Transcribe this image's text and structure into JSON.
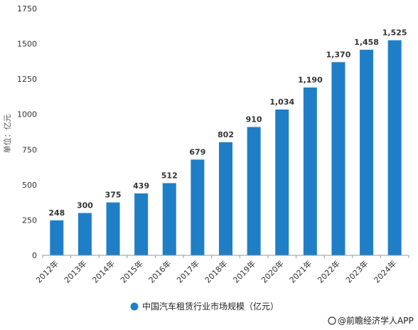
{
  "chart_data": {
    "type": "bar",
    "categories": [
      "2012年",
      "2013年",
      "2014年",
      "2015年",
      "2016年",
      "2017年",
      "2018年",
      "2019年",
      "2020年",
      "2021年",
      "2022年",
      "2023年",
      "2024年"
    ],
    "values": [
      248,
      300,
      375,
      439,
      512,
      679,
      802,
      910,
      1034,
      1190,
      1370,
      1458,
      1525
    ],
    "data_labels": [
      "248",
      "300",
      "375",
      "439",
      "512",
      "679",
      "802",
      "910",
      "1,034",
      "1,190",
      "1,370",
      "1,458",
      "1,525"
    ],
    "series": [
      {
        "name": "中国汽车租赁行业市场规模（亿元）",
        "color": "#1f7fc6"
      }
    ],
    "ylabel": "单位：亿元",
    "ylim": [
      0,
      1750
    ],
    "yticks": [
      0,
      250,
      500,
      750,
      1000,
      1250,
      1500,
      1750
    ],
    "legend_position": "bottom",
    "grid": false
  },
  "footer": {
    "source": "@前瞻经济学人APP"
  }
}
